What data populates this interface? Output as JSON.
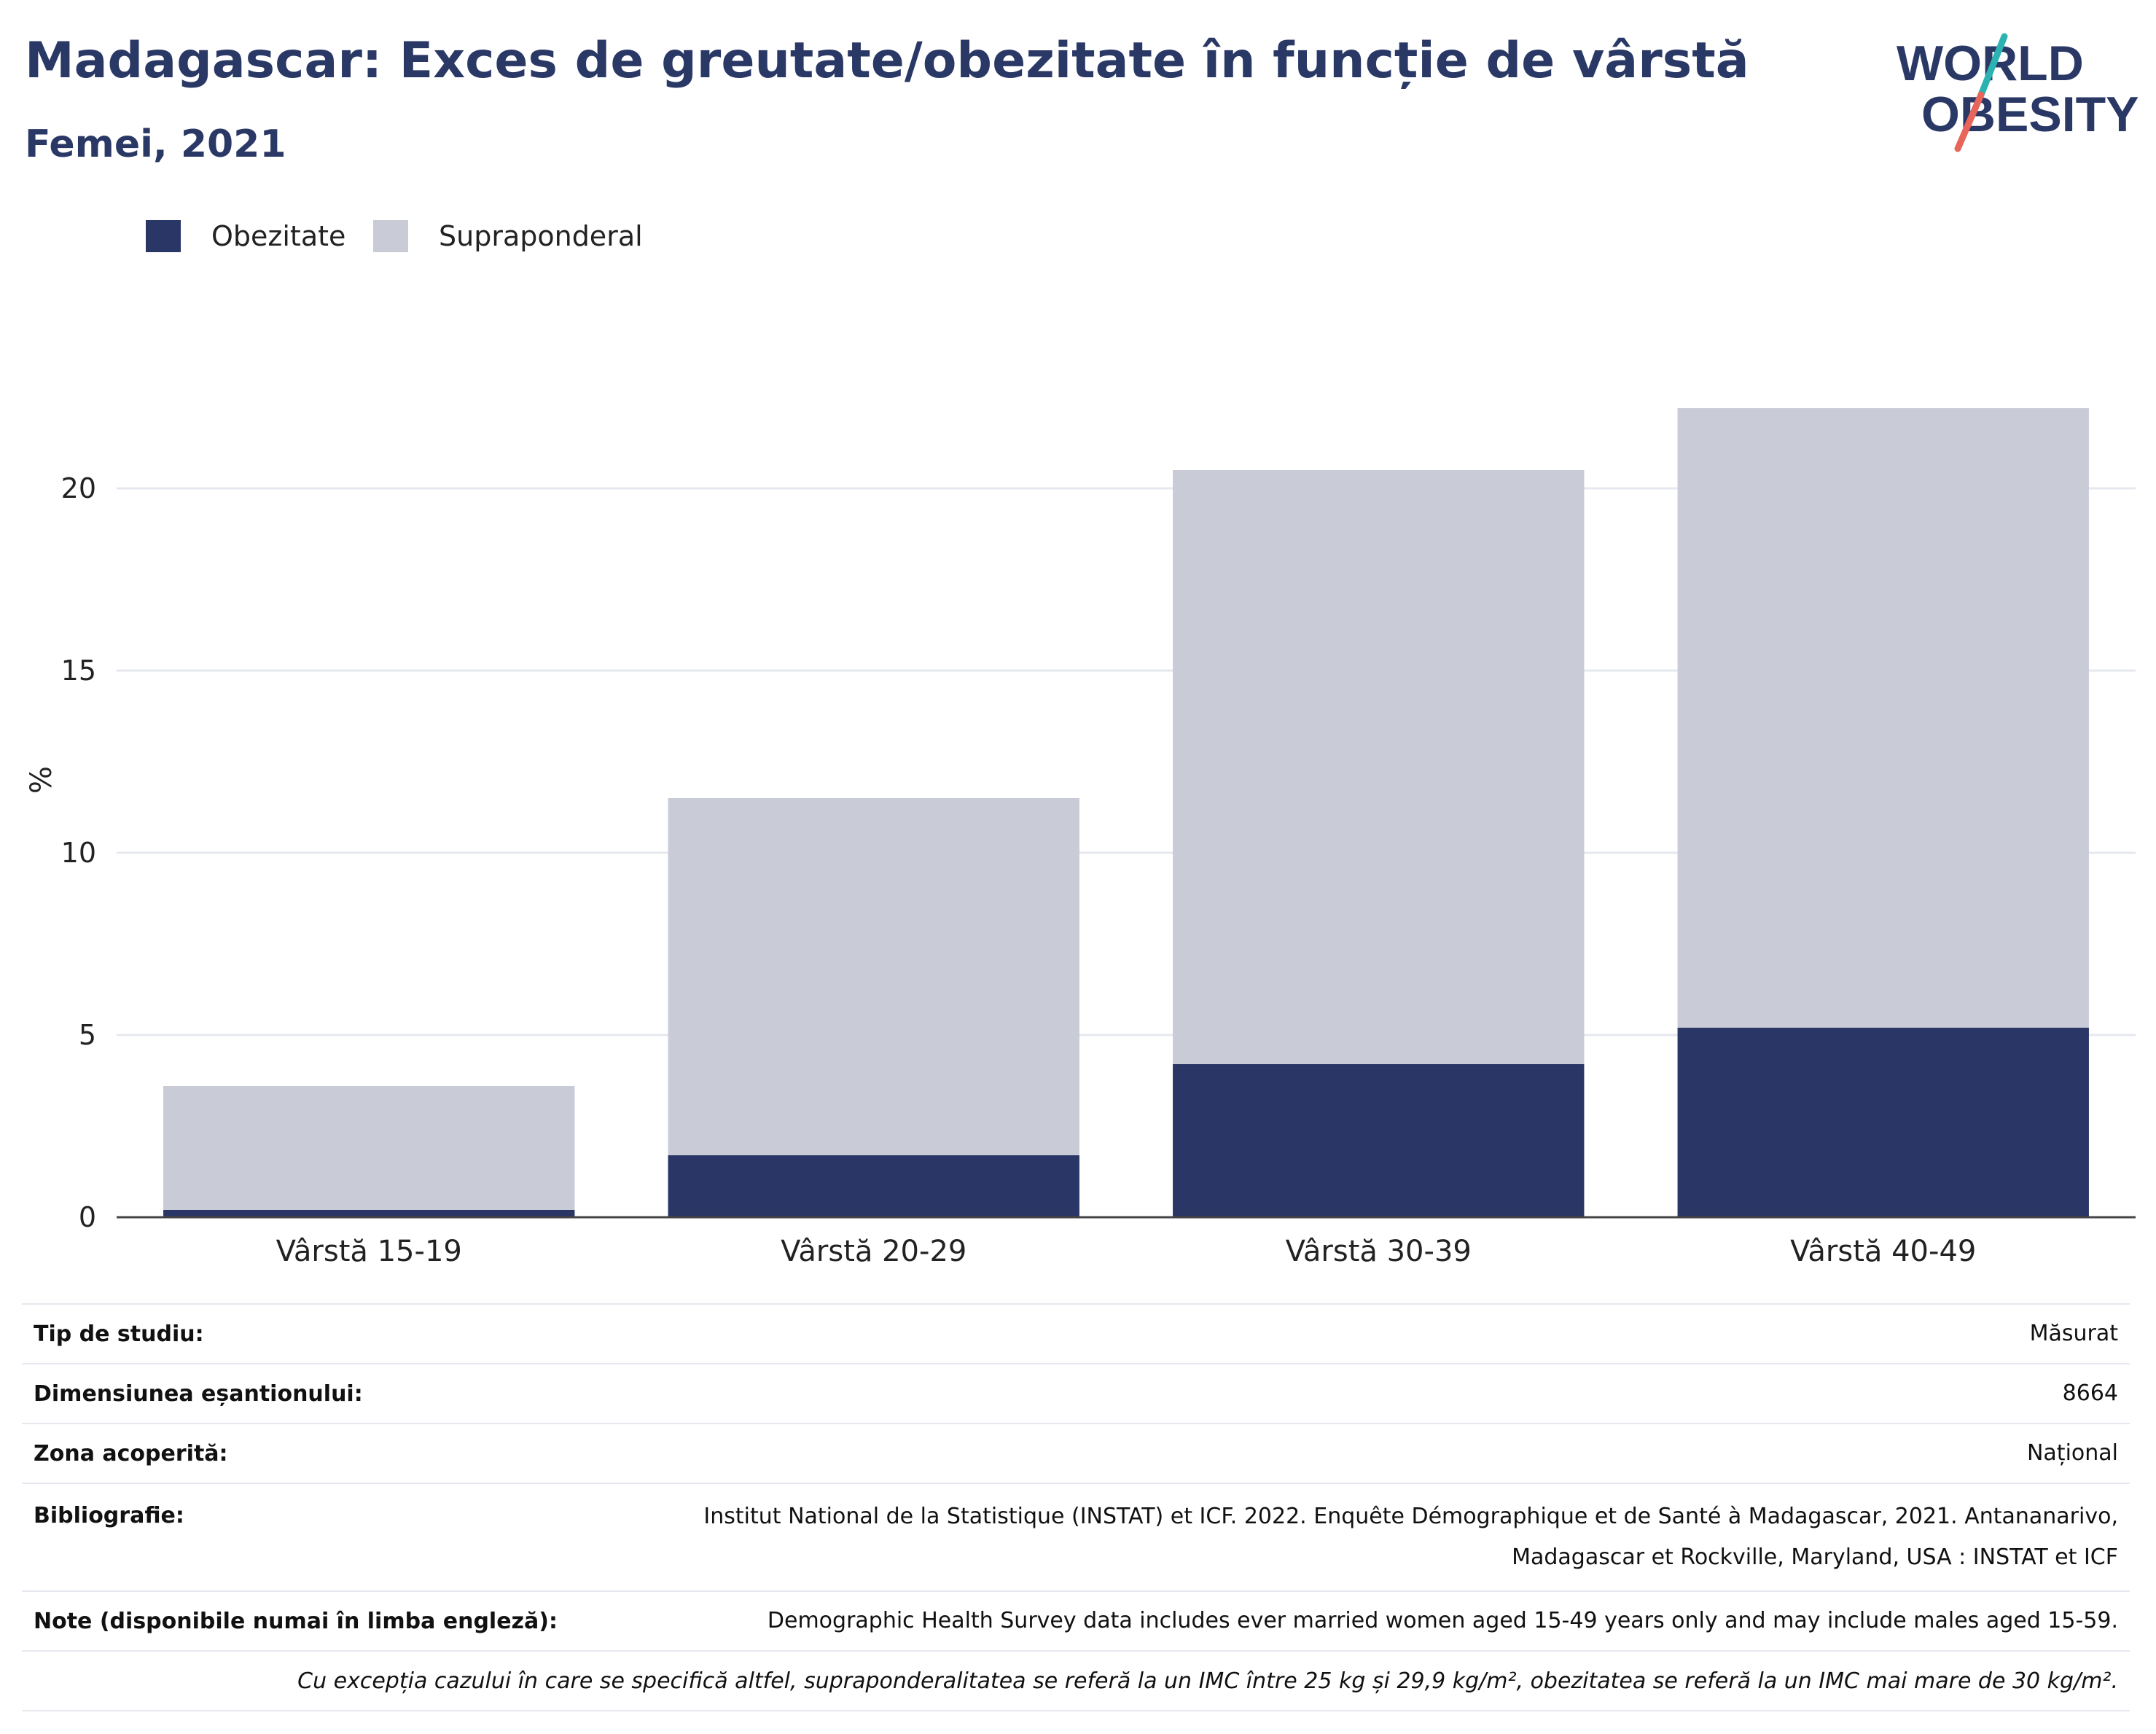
{
  "header": {
    "title": "Madagascar: Exces de greutate/obezitate în funcție de vârstă",
    "subtitle": "Femei, 2021"
  },
  "logo": {
    "line1": "WORLD",
    "line2": "OBESITY",
    "colors": {
      "text": "#2a3866",
      "slash_top": "#2bb3b1",
      "slash_bottom": "#e8655a"
    }
  },
  "legend": {
    "items": [
      {
        "label": "Obezitate",
        "color": "#2a3666"
      },
      {
        "label": "Supraponderal",
        "color": "#c9cbd7"
      }
    ]
  },
  "chart_data": {
    "type": "bar",
    "stacked": true,
    "categories": [
      "Vârstă 15-19",
      "Vârstă 20-29",
      "Vârstă 30-39",
      "Vârstă 40-49"
    ],
    "series": [
      {
        "name": "Obezitate",
        "color": "#2a3666",
        "values": [
          0.2,
          1.7,
          4.2,
          5.2
        ]
      },
      {
        "name": "Supraponderal",
        "color": "#c9cbd7",
        "values": [
          3.4,
          9.8,
          16.3,
          17.0
        ]
      }
    ],
    "ylabel": "%",
    "yticks": [
      0,
      5,
      10,
      15,
      20
    ],
    "ylim": [
      0,
      24
    ],
    "grid": true,
    "legend_position": "top-left"
  },
  "info": {
    "rows": [
      {
        "key": "Tip de studiu:",
        "value": "Măsurat"
      },
      {
        "key": "Dimensiunea eșantionului:",
        "value": "8664"
      },
      {
        "key": "Zona acoperită:",
        "value": "Național"
      },
      {
        "key": "Bibliografie:",
        "value_line1": "Institut National de la Statistique (INSTAT) et ICF. 2022. Enquête Démographique et de Santé à Madagascar, 2021. Antananarivo,",
        "value_line2": "Madagascar et Rockville, Maryland, USA : INSTAT et ICF"
      },
      {
        "key": "Note (disponibile numai în limba engleză):",
        "value": "Demographic Health Survey data includes ever married women aged 15-49 years only and may include males aged 15-59."
      }
    ],
    "footnote": "Cu excepția cazului în care se specifică altfel, supraponderalitatea se referă la un IMC între 25 kg și 29,9 kg/m², obezitatea se referă la un IMC mai mare de 30 kg/m²."
  }
}
